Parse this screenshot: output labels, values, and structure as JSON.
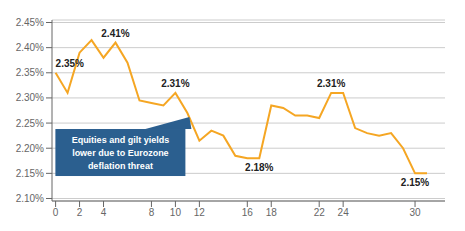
{
  "chart_data": {
    "type": "line",
    "x": [
      0,
      1,
      2,
      3,
      4,
      5,
      6,
      7,
      8,
      9,
      10,
      11,
      12,
      13,
      14,
      15,
      16,
      17,
      18,
      19,
      20,
      21,
      22,
      23,
      24,
      25,
      26,
      27,
      28,
      29,
      30,
      31
    ],
    "values": [
      2.35,
      2.31,
      2.39,
      2.415,
      2.38,
      2.41,
      2.37,
      2.295,
      2.29,
      2.285,
      2.31,
      2.27,
      2.215,
      2.235,
      2.225,
      2.185,
      2.18,
      2.18,
      2.285,
      2.28,
      2.265,
      2.265,
      2.26,
      2.31,
      2.31,
      2.24,
      2.23,
      2.225,
      2.23,
      2.2,
      2.15,
      2.15
    ],
    "value_labels": [
      "2.35%",
      null,
      null,
      null,
      null,
      "2.41%",
      null,
      null,
      null,
      null,
      "2.31%",
      null,
      null,
      null,
      null,
      null,
      null,
      "2.18%",
      null,
      null,
      null,
      null,
      null,
      "2.31%",
      null,
      null,
      null,
      null,
      null,
      null,
      "2.15%",
      null
    ],
    "data_labels": true,
    "color": "#F5A623",
    "xlim": [
      -0.3,
      32.5
    ],
    "ylim": [
      2.095,
      2.455
    ],
    "xticks": [
      0,
      2,
      4,
      8,
      10,
      12,
      16,
      18,
      22,
      24,
      30
    ],
    "yticks": [
      {
        "value": 2.1,
        "label": "2.10%"
      },
      {
        "value": 2.15,
        "label": "2.15%"
      },
      {
        "value": 2.2,
        "label": "2.20%"
      },
      {
        "value": 2.25,
        "label": "2.25%"
      },
      {
        "value": 2.3,
        "label": "2.30%"
      },
      {
        "value": 2.35,
        "label": "2.35%"
      },
      {
        "value": 2.4,
        "label": "2.40%"
      },
      {
        "value": 2.45,
        "label": "2.45%"
      }
    ],
    "grid": true,
    "annotations": [
      {
        "x": 11,
        "y": 2.27,
        "label": "Equities and gilt yields\nlower due to Eurozone\ndeflation threat"
      }
    ]
  }
}
